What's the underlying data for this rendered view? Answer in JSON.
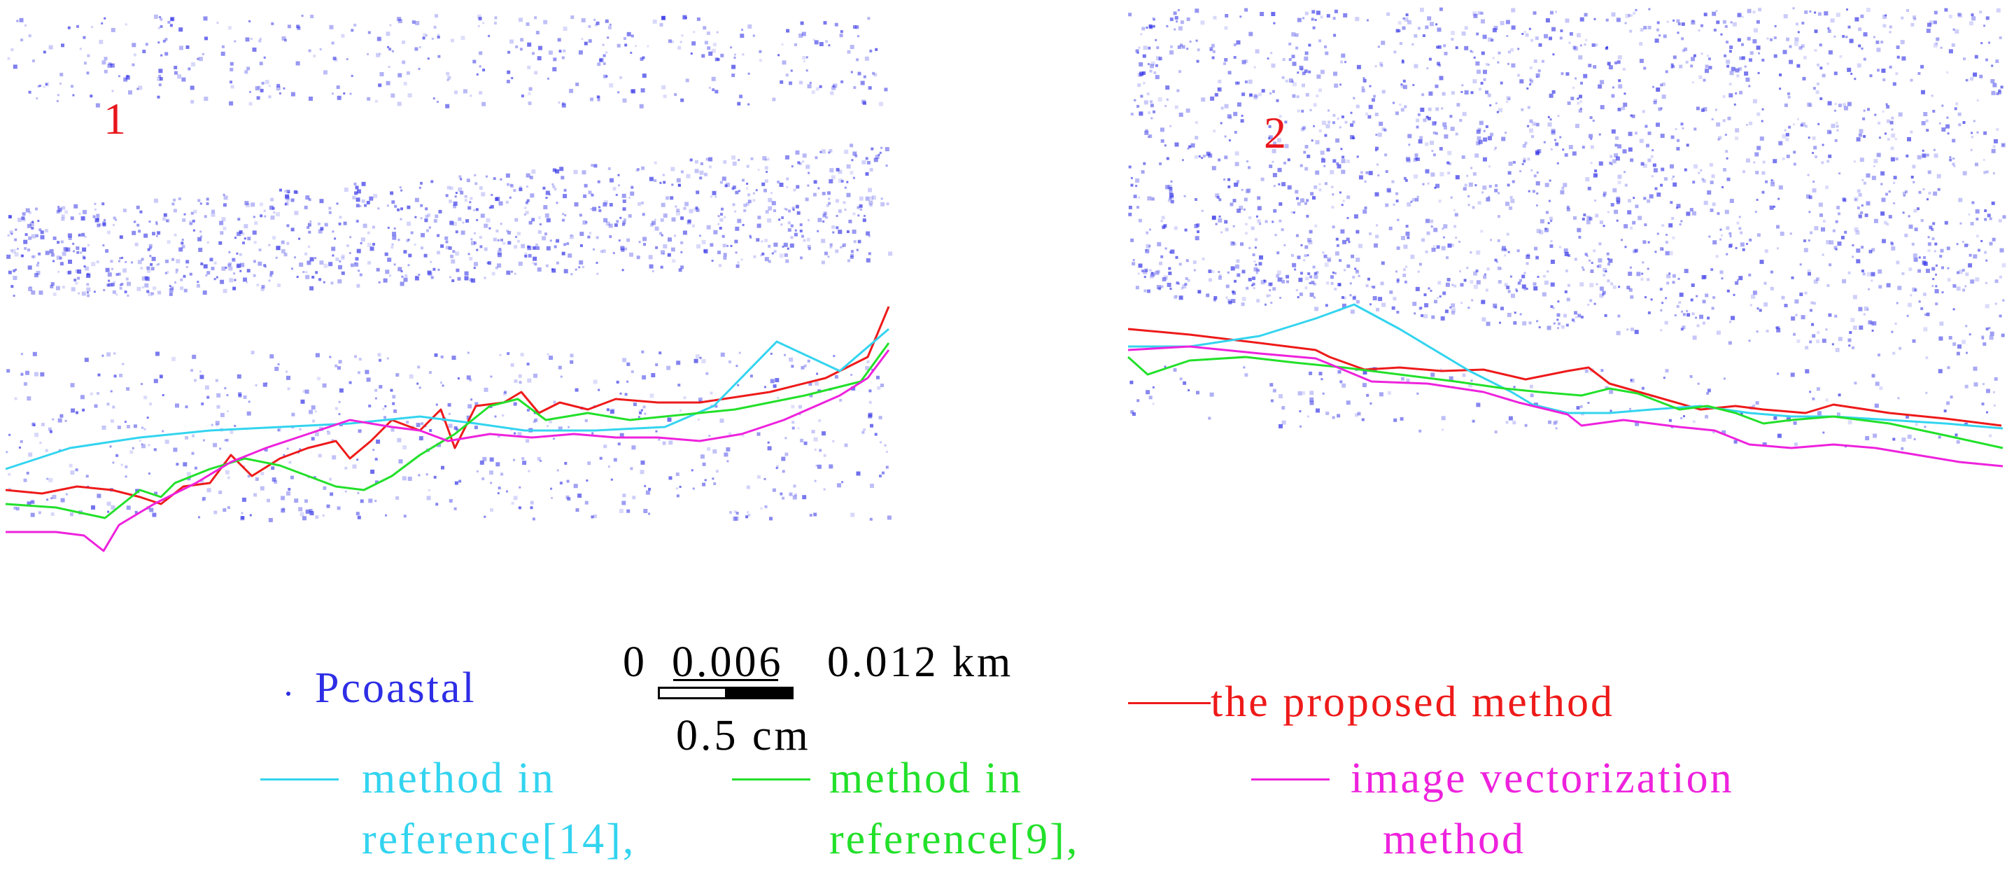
{
  "panels": [
    {
      "label": "1",
      "label_color": "#e8161b"
    },
    {
      "label": "2",
      "label_color": "#e8161b"
    }
  ],
  "point_layer": {
    "name": "Pcoastal",
    "color": "#2e2ee6"
  },
  "scale_bar": {
    "ticks": [
      "0",
      "0.006",
      "0.012 km"
    ],
    "map_unit_label": "0.5 cm"
  },
  "methods": [
    {
      "key": "proposed",
      "label": "the proposed method",
      "color": "#ee1a1a"
    },
    {
      "key": "ref14",
      "label_line1": "method in",
      "label_line2": "reference[14],",
      "color": "#33d4ef"
    },
    {
      "key": "ref9",
      "label_line1": "method in",
      "label_line2": "reference[9],",
      "color": "#22e02a"
    },
    {
      "key": "vector",
      "label_line1": "image vectorization",
      "label_line2": "method",
      "color": "#ee22dd"
    }
  ]
}
